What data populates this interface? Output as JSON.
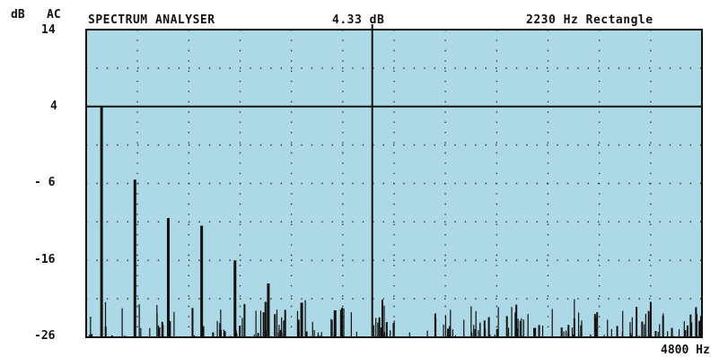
{
  "header": {
    "db_label": "dB",
    "mode_label": "AC",
    "title": "SPECTRUM ANALYSER",
    "readout": "4.33 dB",
    "cursor_info": "2230 Hz Rectangle"
  },
  "colors": {
    "plot_background": "#add8e6",
    "trace": "#111111",
    "grid_dots": "#333333"
  },
  "chart_data": {
    "type": "bar",
    "title": "SPECTRUM ANALYSER",
    "y_unit": "dB",
    "x_unit": "Hz",
    "xlim": [
      0,
      4800
    ],
    "ylim": [
      -26,
      14
    ],
    "y_tick_labels": [
      "14",
      "4",
      "- 6",
      "-16",
      "-26"
    ],
    "y_tick_values": [
      14,
      4,
      -6,
      -16,
      -26
    ],
    "x_end_label": "4800 Hz",
    "grid": "dotted",
    "reference_level_db": 4,
    "cursor_hz": 2230,
    "cursor_level_db": 4.33,
    "window": "Rectangle",
    "harmonics": {
      "x": [
        120,
        380,
        640,
        900,
        1160,
        1420,
        1680,
        1940
      ],
      "y": [
        4.0,
        -5.5,
        -10.5,
        -11.5,
        -16.0,
        -19.0,
        -21.5,
        -22.5
      ]
    },
    "noise_floor_db": [
      -26,
      -21
    ],
    "noise_count": 260
  }
}
